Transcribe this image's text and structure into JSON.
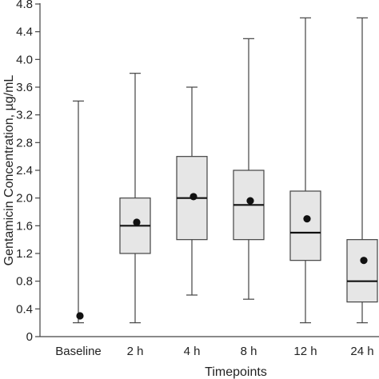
{
  "chart_data": {
    "type": "box",
    "xlabel": "Timepoints",
    "ylabel": "Gentamicin Concentration, µg/mL",
    "ylim": [
      0,
      4.8
    ],
    "yticks": [
      "0",
      "0.4",
      "0.8",
      "1.2",
      "1.6",
      "2.0",
      "2.4",
      "2.8",
      "3.2",
      "3.6",
      "4.0",
      "4.4",
      "4.8"
    ],
    "categories": [
      "Baseline",
      "2 h",
      "4 h",
      "8 h",
      "12 h",
      "24 h"
    ],
    "boxes": [
      {
        "category": "Baseline",
        "min": 0.2,
        "q1": null,
        "median": null,
        "q3": null,
        "max": 3.4,
        "mean": 0.3
      },
      {
        "category": "2 h",
        "min": 0.2,
        "q1": 1.2,
        "median": 1.6,
        "q3": 2.0,
        "max": 3.8,
        "mean": 1.65
      },
      {
        "category": "4 h",
        "min": 0.6,
        "q1": 1.4,
        "median": 2.0,
        "q3": 2.6,
        "max": 3.6,
        "mean": 2.02
      },
      {
        "category": "8 h",
        "min": 0.54,
        "q1": 1.4,
        "median": 1.9,
        "q3": 2.4,
        "max": 4.3,
        "mean": 1.96
      },
      {
        "category": "12 h",
        "min": 0.2,
        "q1": 1.1,
        "median": 1.5,
        "q3": 2.1,
        "max": 4.6,
        "mean": 1.7
      },
      {
        "category": "24 h",
        "min": 0.2,
        "q1": 0.5,
        "median": 0.8,
        "q3": 1.4,
        "max": 4.6,
        "mean": 1.1
      }
    ],
    "colors": {
      "box_fill": "#e6e6e6",
      "line": "#444444",
      "median": "#111111",
      "mean_marker": "#111111"
    }
  }
}
